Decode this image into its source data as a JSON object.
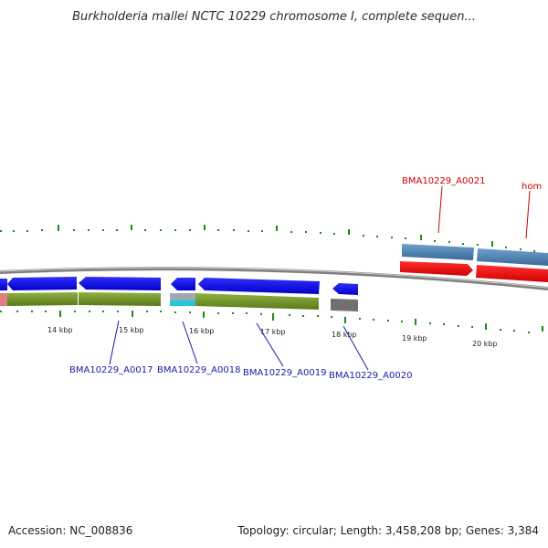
{
  "title": "Burkholderia mallei NCTC 10229 chromosome I, complete sequen...",
  "footer": {
    "accession": "Accession: NC_008836",
    "summary": "Topology: circular; Length: 3,458,208 bp; Genes: 3,384"
  },
  "scale_labels": [
    "14 kbp",
    "15 kbp",
    "16 kbp",
    "17 kbp",
    "18 kbp",
    "19 kbp",
    "20 kbp"
  ],
  "genes_lower": [
    {
      "label": "BMA10229_A0017",
      "color": "#1a1aa8"
    },
    {
      "label": "BMA10229_A0018",
      "color": "#1a1aa8"
    },
    {
      "label": "BMA10229_A0019",
      "color": "#1a1aa8"
    },
    {
      "label": "BMA10229_A0020",
      "color": "#1a1aa8"
    }
  ],
  "genes_upper": [
    {
      "label": "BMA10229_A0021",
      "color": "#cc0000"
    },
    {
      "label": "hom",
      "color": "#cc0000"
    }
  ],
  "colors": {
    "forward_gene": "#e00000",
    "reverse_gene": "#1010f0",
    "cds_upper": "#4f82b0",
    "cds_lower": "#6b8e23",
    "backbone": "#808080",
    "ticks": "#1a8a1a"
  }
}
